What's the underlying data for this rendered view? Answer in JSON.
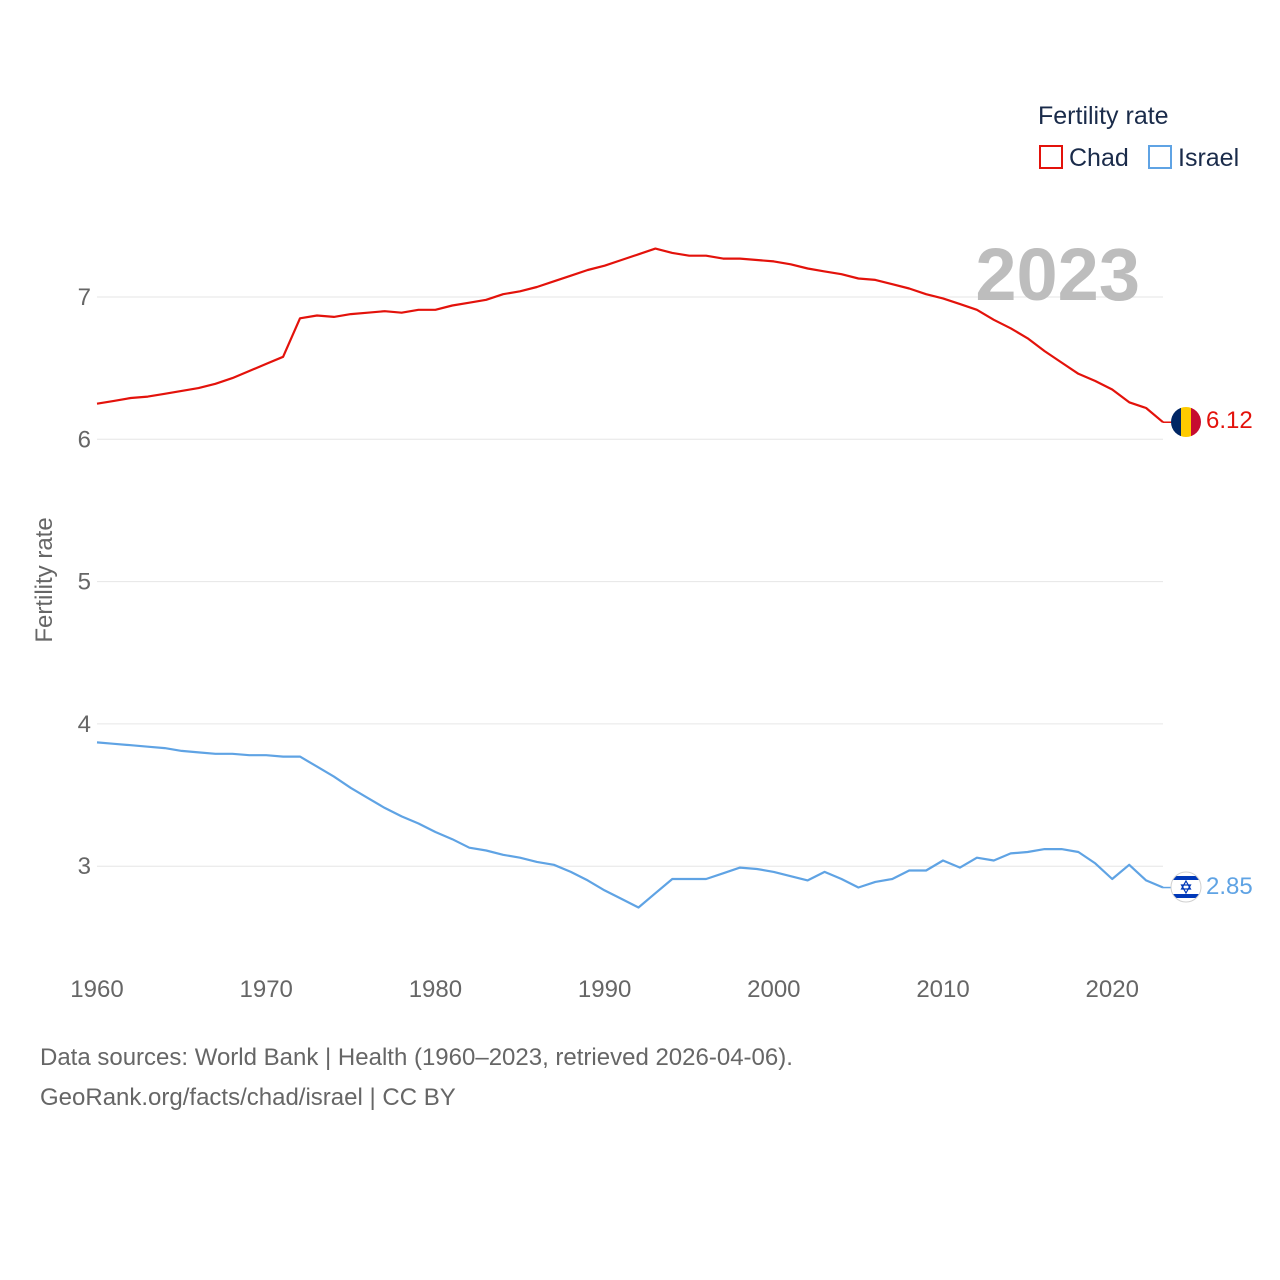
{
  "chart_data": {
    "type": "line",
    "ylabel": "Fertility rate",
    "xlabel": "",
    "legend_title": "Fertility rate",
    "year_label": "2023",
    "xlim": [
      1960,
      2023
    ],
    "ylim": [
      2.4,
      7.9
    ],
    "x_ticks": [
      1960,
      1970,
      1980,
      1990,
      2000,
      2010,
      2020
    ],
    "y_ticks": [
      3,
      4,
      5,
      6,
      7
    ],
    "x": [
      1960,
      1961,
      1962,
      1963,
      1964,
      1965,
      1966,
      1967,
      1968,
      1969,
      1970,
      1971,
      1972,
      1973,
      1974,
      1975,
      1976,
      1977,
      1978,
      1979,
      1980,
      1981,
      1982,
      1983,
      1984,
      1985,
      1986,
      1987,
      1988,
      1989,
      1990,
      1991,
      1992,
      1993,
      1994,
      1995,
      1996,
      1997,
      1998,
      1999,
      2000,
      2001,
      2002,
      2003,
      2004,
      2005,
      2006,
      2007,
      2008,
      2009,
      2010,
      2011,
      2012,
      2013,
      2014,
      2015,
      2016,
      2017,
      2018,
      2019,
      2020,
      2021,
      2022,
      2023
    ],
    "series": [
      {
        "name": "Chad",
        "color": "#e3120b",
        "end_label": "6.12",
        "values": [
          6.25,
          6.27,
          6.29,
          6.3,
          6.32,
          6.34,
          6.36,
          6.39,
          6.43,
          6.48,
          6.53,
          6.58,
          6.85,
          6.87,
          6.86,
          6.88,
          6.89,
          6.9,
          6.89,
          6.91,
          6.91,
          6.94,
          6.96,
          6.98,
          7.02,
          7.04,
          7.07,
          7.11,
          7.15,
          7.19,
          7.22,
          7.26,
          7.3,
          7.34,
          7.31,
          7.29,
          7.29,
          7.27,
          7.27,
          7.26,
          7.25,
          7.23,
          7.2,
          7.18,
          7.16,
          7.13,
          7.12,
          7.09,
          7.06,
          7.02,
          6.99,
          6.95,
          6.91,
          6.84,
          6.78,
          6.71,
          6.62,
          6.54,
          6.46,
          6.41,
          6.35,
          6.26,
          6.22,
          6.12
        ]
      },
      {
        "name": "Israel",
        "color": "#5fa3e4",
        "end_label": "2.85",
        "values": [
          3.87,
          3.86,
          3.85,
          3.84,
          3.83,
          3.81,
          3.8,
          3.79,
          3.79,
          3.78,
          3.78,
          3.77,
          3.77,
          3.7,
          3.63,
          3.55,
          3.48,
          3.41,
          3.35,
          3.3,
          3.24,
          3.19,
          3.13,
          3.11,
          3.08,
          3.06,
          3.03,
          3.01,
          2.96,
          2.9,
          2.83,
          2.77,
          2.71,
          2.81,
          2.91,
          2.91,
          2.91,
          2.95,
          2.99,
          2.98,
          2.96,
          2.93,
          2.9,
          2.96,
          2.91,
          2.85,
          2.89,
          2.91,
          2.97,
          2.97,
          3.04,
          2.99,
          3.06,
          3.04,
          3.09,
          3.1,
          3.12,
          3.12,
          3.1,
          3.02,
          2.91,
          3.01,
          2.9,
          2.85
        ]
      }
    ]
  },
  "footer": {
    "line1": "Data sources: World Bank | Health (1960–2023, retrieved 2026-04-06).",
    "line2": "GeoRank.org/facts/chad/israel | CC BY"
  }
}
